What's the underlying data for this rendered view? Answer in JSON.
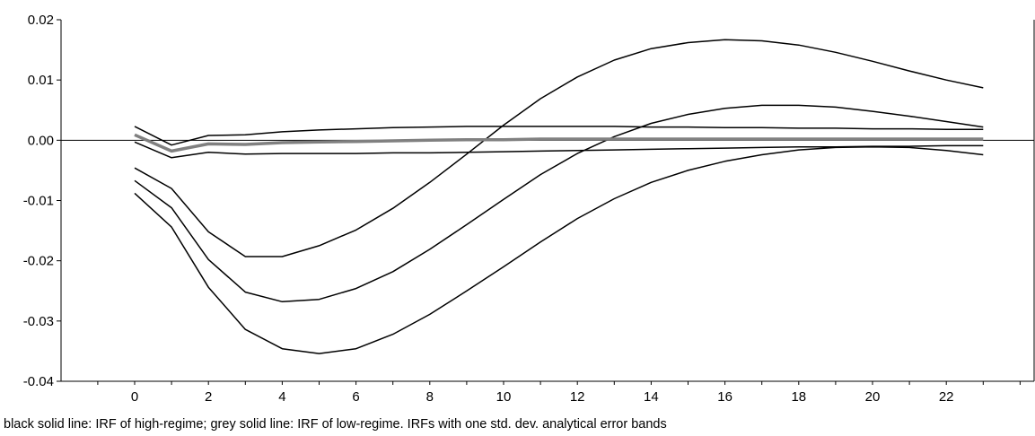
{
  "chart_data": {
    "type": "line",
    "caption": "black solid line: IRF of high-regime; grey solid line: IRF of low-regime. IRFs with one std. dev. analytical error bands",
    "x": [
      0,
      1,
      2,
      3,
      4,
      5,
      6,
      7,
      8,
      9,
      10,
      11,
      12,
      13,
      14,
      15,
      16,
      17,
      18,
      19,
      20,
      21,
      22,
      23
    ],
    "xticks": [
      0,
      2,
      4,
      6,
      8,
      10,
      12,
      14,
      16,
      18,
      20,
      22
    ],
    "ylim": [
      -0.04,
      0.02
    ],
    "yticks": [
      -0.04,
      -0.03,
      -0.02,
      -0.01,
      0.0,
      0.01,
      0.02
    ],
    "ytick_labels": [
      "-0.04",
      "-0.03",
      "-0.02",
      "-0.01",
      "0.00",
      "0.01",
      "0.02"
    ],
    "zero_line": true,
    "grid": false,
    "series": [
      {
        "color": "#000000",
        "width": 1.5,
        "values": [
          -0.0067,
          -0.0112,
          -0.0198,
          -0.0252,
          -0.0268,
          -0.0264,
          -0.0246,
          -0.0218,
          -0.0181,
          -0.014,
          -0.0098,
          -0.0057,
          -0.0022,
          0.0006,
          0.0028,
          0.0043,
          0.0053,
          0.0058,
          0.0058,
          0.0055,
          0.0048,
          0.004,
          0.0031,
          0.0022
        ]
      },
      {
        "color": "#000000",
        "width": 1.5,
        "values": [
          -0.0046,
          -0.008,
          -0.0152,
          -0.0193,
          -0.0193,
          -0.0175,
          -0.0149,
          -0.0113,
          -0.007,
          -0.0023,
          0.0025,
          0.0069,
          0.0105,
          0.0133,
          0.0152,
          0.0162,
          0.0167,
          0.0165,
          0.0158,
          0.0146,
          0.0131,
          0.0115,
          0.01,
          0.0087
        ]
      },
      {
        "color": "#000000",
        "width": 1.5,
        "values": [
          -0.0088,
          -0.0144,
          -0.0244,
          -0.0314,
          -0.0346,
          -0.0354,
          -0.0346,
          -0.0322,
          -0.0289,
          -0.025,
          -0.021,
          -0.0169,
          -0.013,
          -0.0097,
          -0.007,
          -0.005,
          -0.0035,
          -0.0024,
          -0.0016,
          -0.0012,
          -0.0011,
          -0.0012,
          -0.0017,
          -0.0024
        ]
      },
      {
        "color": "#000000",
        "width": 1.5,
        "values": [
          0.0023,
          -0.0008,
          0.0008,
          0.0009,
          0.0014,
          0.0017,
          0.0019,
          0.0021,
          0.0022,
          0.0023,
          0.0023,
          0.0023,
          0.0023,
          0.0023,
          0.0022,
          0.0022,
          0.0021,
          0.0021,
          0.002,
          0.002,
          0.0019,
          0.0019,
          0.0018,
          0.0018
        ]
      },
      {
        "color": "#000000",
        "width": 1.5,
        "values": [
          -0.0003,
          -0.0029,
          -0.002,
          -0.0023,
          -0.0022,
          -0.0022,
          -0.0022,
          -0.0021,
          -0.0021,
          -0.002,
          -0.0019,
          -0.0018,
          -0.0017,
          -0.0016,
          -0.0015,
          -0.0014,
          -0.0013,
          -0.0012,
          -0.0011,
          -0.0011,
          -0.001,
          -0.001,
          -0.0009,
          -0.0009
        ]
      },
      {
        "color": "#808080",
        "width": 3.5,
        "values": [
          0.0009,
          -0.0018,
          -0.0006,
          -0.0007,
          -0.0004,
          -0.0003,
          -0.0002,
          -0.0001,
          0.0,
          0.0001,
          0.0001,
          0.0002,
          0.0002,
          0.0002,
          0.0002,
          0.0002,
          0.0002,
          0.0002,
          0.0002,
          0.0002,
          0.0002,
          0.0002,
          0.0002,
          0.0002
        ]
      }
    ]
  }
}
